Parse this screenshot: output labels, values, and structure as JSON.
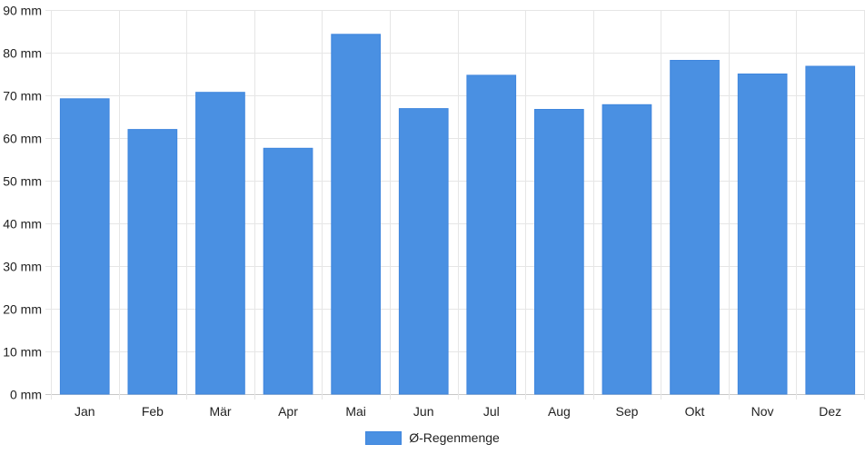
{
  "chart_data": {
    "type": "bar",
    "categories": [
      "Jan",
      "Feb",
      "Mär",
      "Apr",
      "Mai",
      "Jun",
      "Jul",
      "Aug",
      "Sep",
      "Okt",
      "Nov",
      "Dez"
    ],
    "series": [
      {
        "name": "Ø-Regenmenge",
        "values": [
          69.2,
          62.0,
          70.7,
          57.6,
          84.3,
          66.9,
          74.7,
          66.7,
          67.8,
          78.2,
          75.0,
          76.8
        ],
        "color": "#4a90e2"
      }
    ],
    "y_tick_labels": [
      "0 mm",
      "10 mm",
      "20 mm",
      "30 mm",
      "40 mm",
      "50 mm",
      "60 mm",
      "70 mm",
      "80 mm",
      "90 mm"
    ],
    "y_tick_values": [
      0,
      10,
      20,
      30,
      40,
      50,
      60,
      70,
      80,
      90
    ],
    "ylim": [
      0,
      90
    ],
    "title": "",
    "xlabel": "",
    "ylabel": "",
    "grid": true,
    "legend_position": "bottom"
  }
}
